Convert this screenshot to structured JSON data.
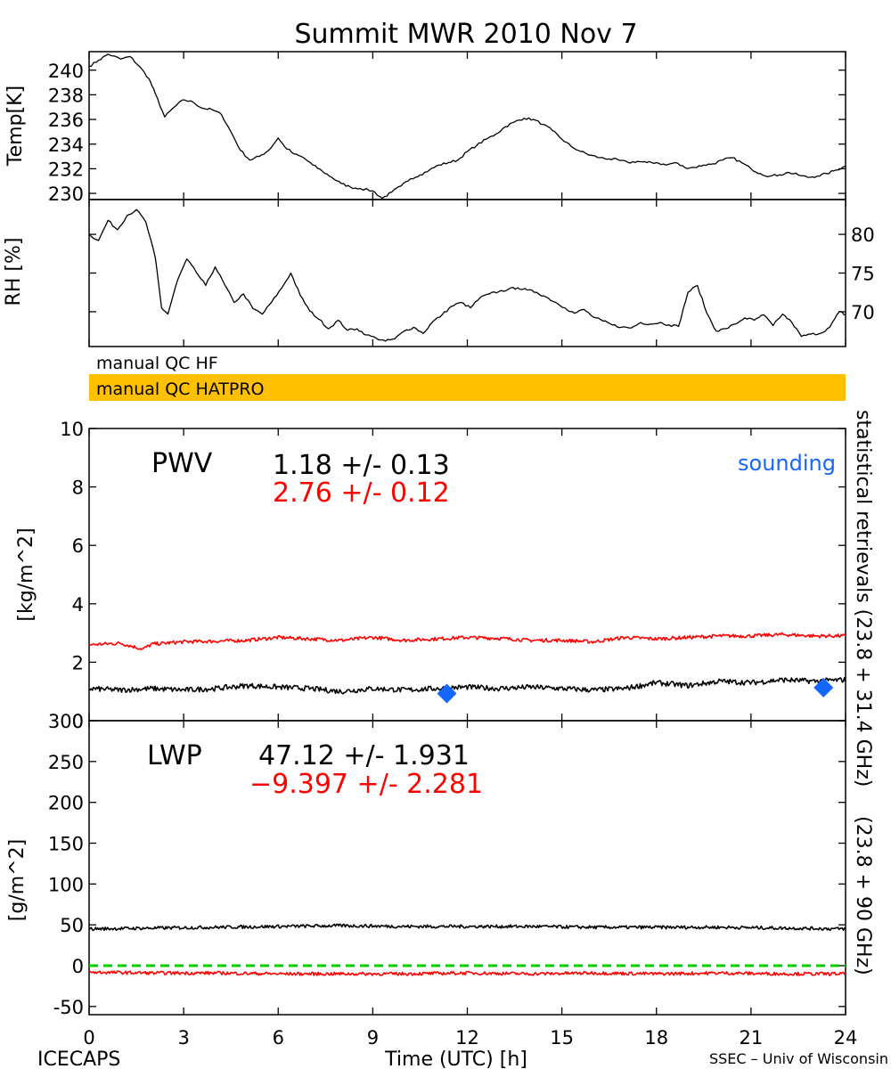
{
  "title": "Summit MWR 2010 Nov  7",
  "colors": {
    "black": "#000000",
    "red": "#ff0000",
    "blue": "#1565ff",
    "qc_bar": "#ffc000",
    "zero_line": "#00cc00"
  },
  "x_axis": {
    "label": "Time (UTC) [h]",
    "range": [
      0,
      24
    ],
    "ticks": [
      0,
      3,
      6,
      9,
      12,
      15,
      18,
      21,
      24
    ]
  },
  "footer": {
    "left": "ICECAPS",
    "right": "SSEC – Univ of Wisconsin"
  },
  "right_labels": {
    "black": "statistical retrievals (23.8 + 31.4 GHz)",
    "red": "(23.8 + 90 GHz)"
  },
  "qc": {
    "hf_label": "manual QC HF",
    "hatpro_label": "manual QC HATPRO",
    "hatpro_color": "#ffc000"
  },
  "chart_data": [
    {
      "type": "line",
      "panel": "temp",
      "ylabel": "Temp[K]",
      "ylim": [
        229.5,
        241.5
      ],
      "yticks": [
        230,
        232,
        234,
        236,
        238,
        240
      ],
      "series": [
        {
          "color": "#000000",
          "x": [
            0,
            0.3,
            0.6,
            1.0,
            1.3,
            1.6,
            1.9,
            2.1,
            2.4,
            2.7,
            3.0,
            3.3,
            3.6,
            3.9,
            4.2,
            4.5,
            4.8,
            5.1,
            5.4,
            5.7,
            6.0,
            6.2,
            6.5,
            6.8,
            7.1,
            7.4,
            7.7,
            8.0,
            8.3,
            8.6,
            9.0,
            9.3,
            9.6,
            9.9,
            10.2,
            10.5,
            10.8,
            11.1,
            11.4,
            11.7,
            12.0,
            12.3,
            12.6,
            12.9,
            13.2,
            13.5,
            13.8,
            14.1,
            14.4,
            14.7,
            15.0,
            15.3,
            15.6,
            15.9,
            16.2,
            16.5,
            16.8,
            17.1,
            17.4,
            17.7,
            18.0,
            18.3,
            18.6,
            18.9,
            19.2,
            19.5,
            19.8,
            20.1,
            20.4,
            20.7,
            21.0,
            21.3,
            21.6,
            21.9,
            22.2,
            22.5,
            22.8,
            23.1,
            23.4,
            23.7,
            24.0
          ],
          "y": [
            240.3,
            240.8,
            241.3,
            240.9,
            241.1,
            240.3,
            239.3,
            238.1,
            236.2,
            237.0,
            237.6,
            237.4,
            236.9,
            236.8,
            236.4,
            235.0,
            233.5,
            232.7,
            233.0,
            233.5,
            234.5,
            233.8,
            233.2,
            232.9,
            232.3,
            231.8,
            231.3,
            230.8,
            230.5,
            230.4,
            230.2,
            229.6,
            230.1,
            230.6,
            231.2,
            231.5,
            231.9,
            232.3,
            232.5,
            232.7,
            233.4,
            233.9,
            234.4,
            234.8,
            235.4,
            235.8,
            236.1,
            236.0,
            235.6,
            235.1,
            234.4,
            233.8,
            233.4,
            233.1,
            232.9,
            232.8,
            232.7,
            232.5,
            232.6,
            232.5,
            232.5,
            232.3,
            232.5,
            232.1,
            232.1,
            232.3,
            232.4,
            232.7,
            232.9,
            232.5,
            232.0,
            231.6,
            231.4,
            231.5,
            231.7,
            231.5,
            231.3,
            231.4,
            231.6,
            231.9,
            232.2
          ]
        }
      ]
    },
    {
      "type": "line",
      "panel": "rh",
      "ylabel": "RH [%]",
      "ylim": [
        65.5,
        84.5
      ],
      "yticks": [
        70,
        75,
        80
      ],
      "series": [
        {
          "color": "#000000",
          "x": [
            0,
            0.3,
            0.6,
            0.9,
            1.2,
            1.5,
            1.8,
            2.1,
            2.3,
            2.5,
            2.8,
            3.1,
            3.4,
            3.7,
            4.0,
            4.3,
            4.6,
            4.9,
            5.2,
            5.5,
            5.8,
            6.1,
            6.4,
            6.7,
            7.0,
            7.3,
            7.6,
            7.9,
            8.2,
            8.5,
            8.8,
            9.1,
            9.4,
            9.7,
            10.0,
            10.3,
            10.6,
            10.9,
            11.2,
            11.5,
            11.8,
            12.1,
            12.4,
            12.7,
            13.0,
            13.3,
            13.6,
            13.9,
            14.2,
            14.5,
            14.8,
            15.1,
            15.4,
            15.7,
            16.0,
            16.3,
            16.6,
            16.9,
            17.2,
            17.5,
            17.8,
            18.1,
            18.4,
            18.7,
            19.0,
            19.3,
            19.6,
            19.9,
            20.2,
            20.5,
            20.8,
            21.1,
            21.4,
            21.7,
            22.0,
            22.3,
            22.6,
            22.9,
            23.2,
            23.5,
            23.8,
            24.0
          ],
          "y": [
            80.0,
            79.2,
            81.8,
            80.6,
            82.4,
            83.2,
            81.6,
            77.0,
            70.5,
            69.7,
            74.0,
            76.8,
            75.1,
            73.4,
            75.8,
            73.5,
            71.2,
            72.3,
            70.4,
            69.7,
            71.3,
            73.0,
            75.0,
            72.1,
            70.1,
            69.0,
            67.8,
            68.9,
            67.6,
            67.8,
            67.0,
            66.6,
            66.2,
            66.5,
            67.5,
            68.0,
            67.2,
            68.7,
            69.6,
            70.7,
            71.2,
            70.5,
            71.8,
            72.3,
            72.6,
            72.9,
            73.1,
            72.8,
            72.5,
            71.9,
            71.2,
            70.5,
            69.8,
            70.3,
            69.3,
            68.8,
            68.3,
            68.0,
            67.9,
            68.6,
            68.4,
            68.6,
            68.3,
            68.1,
            72.5,
            73.4,
            69.8,
            67.5,
            67.8,
            68.4,
            69.2,
            68.9,
            69.6,
            68.2,
            69.7,
            68.6,
            66.8,
            67.1,
            67.2,
            68.0,
            70.0,
            69.6
          ]
        }
      ]
    },
    {
      "type": "line",
      "panel": "pwv",
      "label": "PWV",
      "ylabel": "[kg/m^2]",
      "ylim": [
        0,
        10
      ],
      "yticks": [
        0,
        2,
        4,
        6,
        8,
        10
      ],
      "stats": [
        {
          "text": "1.18 +/-   0.13",
          "color": "#000000"
        },
        {
          "text": "2.76 +/-   0.12",
          "color": "#ff0000"
        }
      ],
      "legend": "sounding",
      "series": [
        {
          "color": "#ff0000",
          "x": [
            0,
            1,
            1.7,
            2,
            3,
            4,
            5,
            6,
            7,
            8,
            9,
            10,
            11,
            12,
            13,
            14,
            15,
            16,
            17,
            18,
            19,
            20,
            21,
            22,
            23,
            24
          ],
          "y": [
            2.6,
            2.65,
            2.45,
            2.62,
            2.7,
            2.72,
            2.75,
            2.85,
            2.8,
            2.75,
            2.85,
            2.75,
            2.8,
            2.85,
            2.82,
            2.75,
            2.75,
            2.7,
            2.85,
            2.8,
            2.85,
            2.9,
            2.9,
            2.95,
            2.9,
            2.9
          ],
          "noise": 0.06
        },
        {
          "color": "#000000",
          "x": [
            0,
            1,
            2,
            3,
            4,
            5,
            6,
            7,
            8,
            9,
            10,
            11,
            12,
            13,
            14,
            15,
            16,
            17,
            18,
            19,
            20,
            21,
            22,
            23,
            24
          ],
          "y": [
            1.1,
            1.05,
            1.1,
            1.05,
            1.1,
            1.2,
            1.15,
            1.1,
            1.0,
            1.1,
            1.05,
            1.1,
            1.15,
            1.1,
            1.15,
            1.1,
            1.05,
            1.1,
            1.3,
            1.2,
            1.35,
            1.3,
            1.4,
            1.35,
            1.4
          ],
          "noise": 0.09
        },
        {
          "type": "scatter",
          "name": "sounding",
          "color": "#1565ff",
          "x": [
            11.35,
            23.3
          ],
          "y": [
            0.93,
            1.13
          ]
        }
      ]
    },
    {
      "type": "line",
      "panel": "lwp",
      "label": "LWP",
      "ylabel": "[g/m^2]",
      "ylim": [
        -60,
        300
      ],
      "yticks": [
        -50,
        0,
        50,
        100,
        150,
        200,
        250,
        300
      ],
      "stats": [
        {
          "text": "47.12 +/-   1.931",
          "color": "#000000"
        },
        {
          "text": "−9.397 +/-   2.281",
          "color": "#ff0000"
        }
      ],
      "zero_line": 0,
      "series": [
        {
          "color": "#000000",
          "x": [
            0,
            2,
            4,
            6,
            8,
            10,
            12,
            14,
            16,
            18,
            20,
            22,
            24
          ],
          "y": [
            45,
            46,
            47,
            48,
            49,
            48,
            48,
            48,
            47,
            47,
            47,
            46,
            45
          ],
          "noise": 2.0
        },
        {
          "color": "#ff0000",
          "x": [
            0,
            2,
            4,
            6,
            8,
            10,
            12,
            14,
            16,
            18,
            20,
            22,
            24
          ],
          "y": [
            -8,
            -9,
            -9,
            -10,
            -10,
            -10,
            -9,
            -10,
            -9,
            -10,
            -9,
            -10,
            -10
          ],
          "noise": 2.0
        }
      ]
    }
  ]
}
